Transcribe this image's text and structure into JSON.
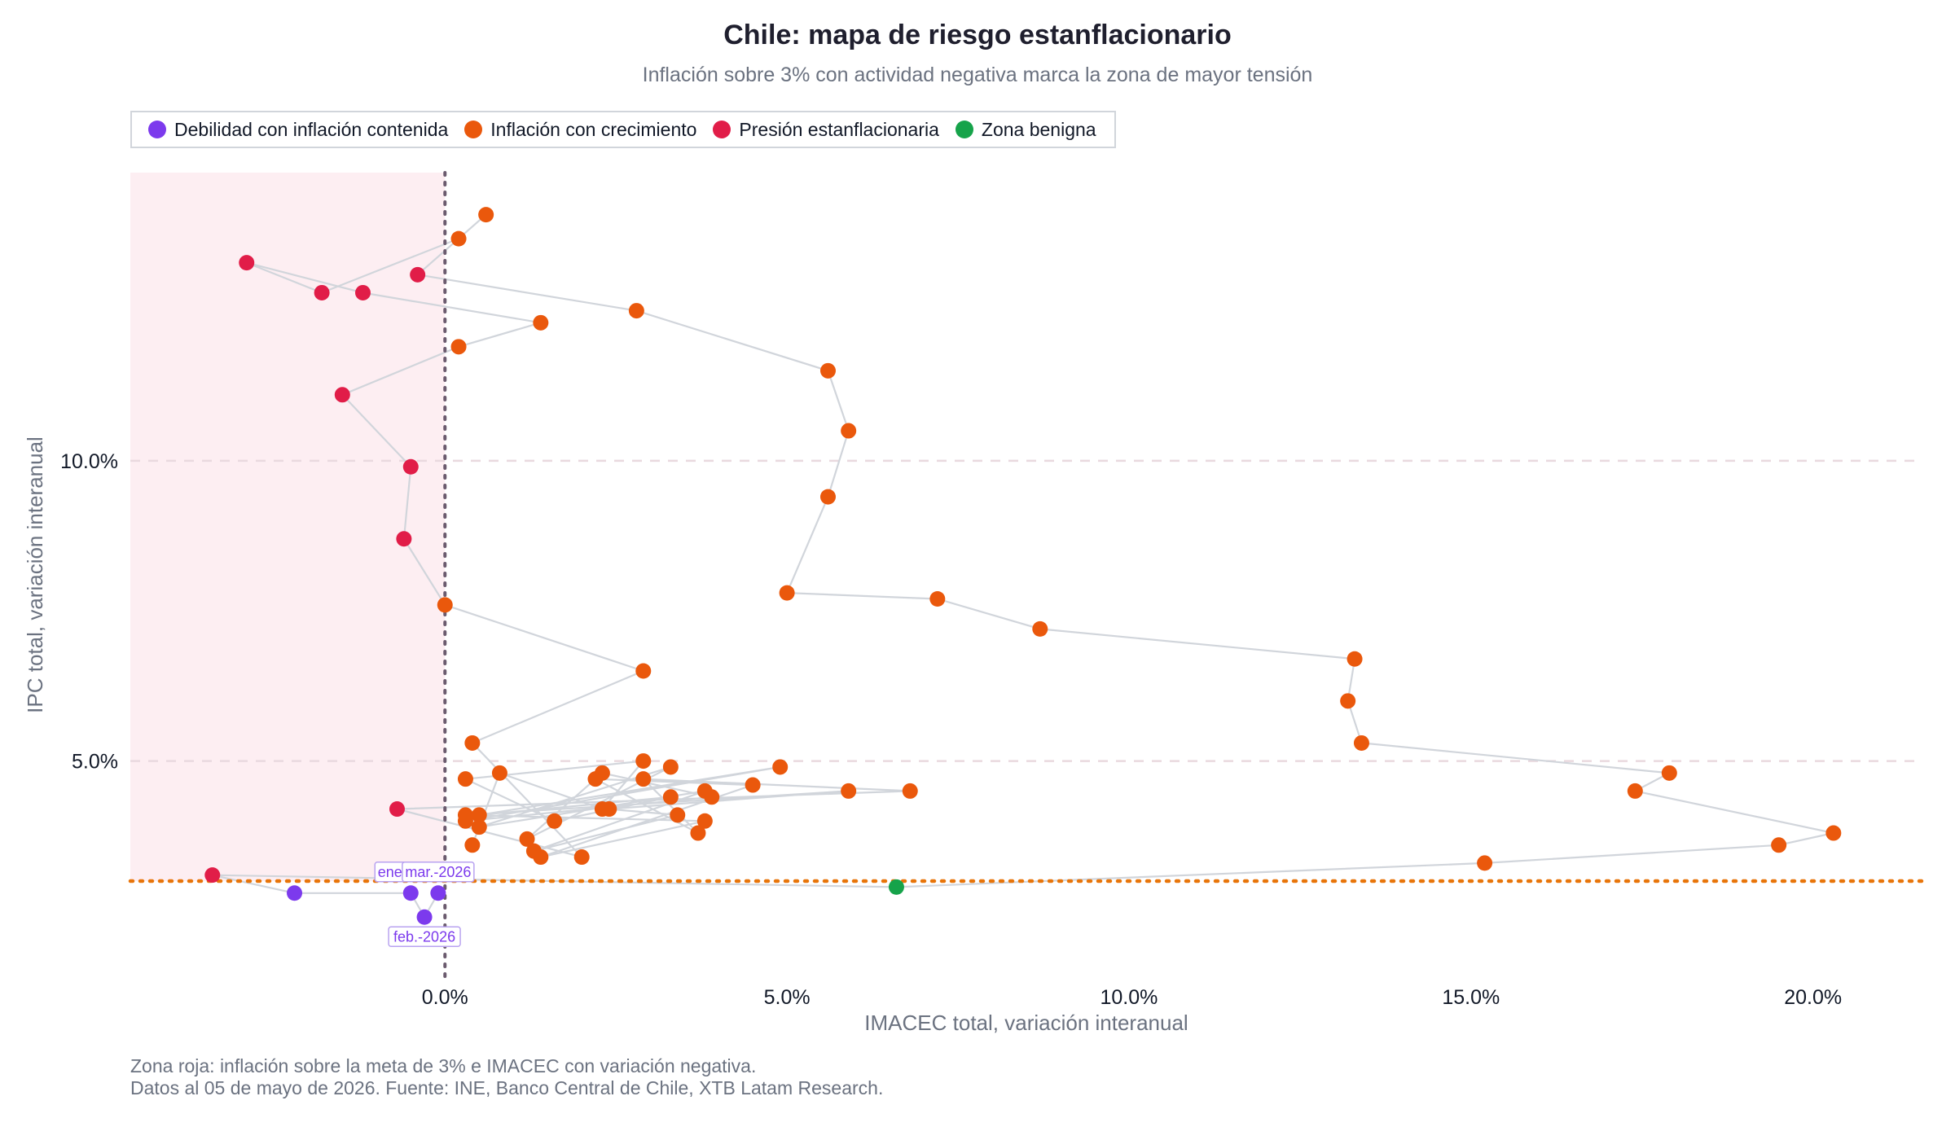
{
  "header": {
    "title": "Chile: mapa de riesgo estanflacionario",
    "subtitle": "Inflación sobre 3% con actividad negativa marca la zona de mayor tensión"
  },
  "legend": [
    {
      "label": "Debilidad con inflación contenida",
      "color": "#7c3aed"
    },
    {
      "label": "Inflación con crecimiento",
      "color": "#ea580c"
    },
    {
      "label": "Presión estanflacionaria",
      "color": "#e11d48"
    },
    {
      "label": "Zona benigna",
      "color": "#16a34a"
    }
  ],
  "footer": {
    "line1": "Zona roja: inflación sobre la meta de 3% e IMACEC con variación negativa.",
    "line2": "Datos al 05 de mayo de 2026. Fuente: INE, Banco Central de Chile, XTB Latam Research."
  },
  "chart_data": {
    "type": "scatter",
    "connected_path": true,
    "xlabel": "IMACEC total, variación interanual",
    "ylabel": "IPC total, variación interanual",
    "xlim": [
      -4.6,
      21.6
    ],
    "ylim": [
      1.4,
      14.8
    ],
    "x_ticks": [
      0,
      5,
      10,
      15,
      20
    ],
    "x_tick_labels": [
      "0.0%",
      "5.0%",
      "10.0%",
      "15.0%",
      "20.0%"
    ],
    "y_ticks": [
      5,
      10
    ],
    "y_tick_labels": [
      "5.0%",
      "10.0%"
    ],
    "grid": "horizontal dashed",
    "inflation_target_line": 3.0,
    "zero_activity_line": 0,
    "shaded_zone": "x < 0 and y > 3 (light red)",
    "colors": {
      "debilidad": "#7c3aed",
      "crecimiento": "#ea580c",
      "presion": "#e11d48",
      "benigna": "#16a34a",
      "path": "#d1d5db",
      "zone": "#fdeef2",
      "target_line": "#e8750a",
      "zero_line": "#6b5b6e",
      "grid": "#e9d9df"
    },
    "points": [
      {
        "x": 0.4,
        "y": 3.6,
        "cat": "crecimiento"
      },
      {
        "x": 0.8,
        "y": 4.8,
        "cat": "crecimiento"
      },
      {
        "x": 2.3,
        "y": 4.2,
        "cat": "crecimiento"
      },
      {
        "x": 2.9,
        "y": 5.0,
        "cat": "crecimiento"
      },
      {
        "x": 0.3,
        "y": 4.7,
        "cat": "crecimiento"
      },
      {
        "x": 1.6,
        "y": 4.0,
        "cat": "crecimiento"
      },
      {
        "x": 3.3,
        "y": 4.4,
        "cat": "crecimiento"
      },
      {
        "x": 0.5,
        "y": 4.1,
        "cat": "crecimiento"
      },
      {
        "x": 4.9,
        "y": 4.9,
        "cat": "crecimiento"
      },
      {
        "x": 0.3,
        "y": 4.0,
        "cat": "crecimiento"
      },
      {
        "x": 3.9,
        "y": 4.4,
        "cat": "crecimiento"
      },
      {
        "x": 2.3,
        "y": 4.8,
        "cat": "crecimiento"
      },
      {
        "x": 1.2,
        "y": 3.7,
        "cat": "crecimiento"
      },
      {
        "x": 3.3,
        "y": 4.9,
        "cat": "crecimiento"
      },
      {
        "x": 0.5,
        "y": 3.9,
        "cat": "crecimiento"
      },
      {
        "x": 3.8,
        "y": 4.5,
        "cat": "crecimiento"
      },
      {
        "x": 1.3,
        "y": 3.5,
        "cat": "crecimiento"
      },
      {
        "x": 3.4,
        "y": 4.1,
        "cat": "crecimiento"
      },
      {
        "x": 2.4,
        "y": 4.2,
        "cat": "crecimiento"
      },
      {
        "x": 5.9,
        "y": 4.5,
        "cat": "crecimiento"
      },
      {
        "x": 0.3,
        "y": 4.1,
        "cat": "crecimiento"
      },
      {
        "x": 3.8,
        "y": 4.0,
        "cat": "crecimiento"
      },
      {
        "x": 1.4,
        "y": 3.4,
        "cat": "crecimiento"
      },
      {
        "x": 4.5,
        "y": 4.6,
        "cat": "crecimiento"
      },
      {
        "x": 2.2,
        "y": 4.7,
        "cat": "crecimiento"
      },
      {
        "x": 3.7,
        "y": 3.8,
        "cat": "crecimiento"
      },
      {
        "x": 2.9,
        "y": 4.7,
        "cat": "crecimiento"
      },
      {
        "x": 6.8,
        "y": 4.5,
        "cat": "crecimiento"
      },
      {
        "x": -0.7,
        "y": 4.2,
        "cat": "presion"
      },
      {
        "x": 2.0,
        "y": 3.4,
        "cat": "crecimiento"
      },
      {
        "x": 0.4,
        "y": 5.3,
        "cat": "crecimiento"
      },
      {
        "x": 2.9,
        "y": 6.5,
        "cat": "crecimiento"
      },
      {
        "x": 0.0,
        "y": 7.6,
        "cat": "crecimiento"
      },
      {
        "x": -0.6,
        "y": 8.7,
        "cat": "presion"
      },
      {
        "x": -0.5,
        "y": 9.9,
        "cat": "presion"
      },
      {
        "x": -1.5,
        "y": 11.1,
        "cat": "presion"
      },
      {
        "x": 0.2,
        "y": 11.9,
        "cat": "crecimiento"
      },
      {
        "x": 1.4,
        "y": 12.3,
        "cat": "crecimiento"
      },
      {
        "x": -1.2,
        "y": 12.8,
        "cat": "presion"
      },
      {
        "x": -2.9,
        "y": 13.3,
        "cat": "presion"
      },
      {
        "x": -1.8,
        "y": 12.8,
        "cat": "presion"
      },
      {
        "x": 0.2,
        "y": 13.7,
        "cat": "crecimiento"
      },
      {
        "x": 0.6,
        "y": 14.1,
        "cat": "crecimiento"
      },
      {
        "x": -0.4,
        "y": 13.1,
        "cat": "presion"
      },
      {
        "x": 2.8,
        "y": 12.5,
        "cat": "crecimiento"
      },
      {
        "x": 5.6,
        "y": 11.5,
        "cat": "crecimiento"
      },
      {
        "x": 5.9,
        "y": 10.5,
        "cat": "crecimiento"
      },
      {
        "x": 5.6,
        "y": 9.4,
        "cat": "crecimiento"
      },
      {
        "x": 5.0,
        "y": 7.8,
        "cat": "crecimiento"
      },
      {
        "x": 7.2,
        "y": 7.7,
        "cat": "crecimiento"
      },
      {
        "x": 8.7,
        "y": 7.2,
        "cat": "crecimiento"
      },
      {
        "x": 13.3,
        "y": 6.7,
        "cat": "crecimiento"
      },
      {
        "x": 13.2,
        "y": 6.0,
        "cat": "crecimiento"
      },
      {
        "x": 13.4,
        "y": 5.3,
        "cat": "crecimiento"
      },
      {
        "x": 17.9,
        "y": 4.8,
        "cat": "crecimiento"
      },
      {
        "x": 17.4,
        "y": 4.5,
        "cat": "crecimiento"
      },
      {
        "x": 20.3,
        "y": 3.8,
        "cat": "crecimiento"
      },
      {
        "x": 19.5,
        "y": 3.6,
        "cat": "crecimiento"
      },
      {
        "x": 15.2,
        "y": 3.3,
        "cat": "crecimiento"
      },
      {
        "x": 6.6,
        "y": 2.9,
        "cat": "benigna"
      },
      {
        "x": -3.4,
        "y": 3.1,
        "cat": "presion"
      },
      {
        "x": -2.2,
        "y": 2.8,
        "cat": "debilidad"
      },
      {
        "x": -0.5,
        "y": 2.8,
        "cat": "debilidad",
        "label": "ene.-2026"
      },
      {
        "x": -0.3,
        "y": 2.4,
        "cat": "debilidad",
        "label": "feb.-2026"
      },
      {
        "x": -0.1,
        "y": 2.8,
        "cat": "debilidad",
        "label": "mar.-2026"
      }
    ]
  }
}
